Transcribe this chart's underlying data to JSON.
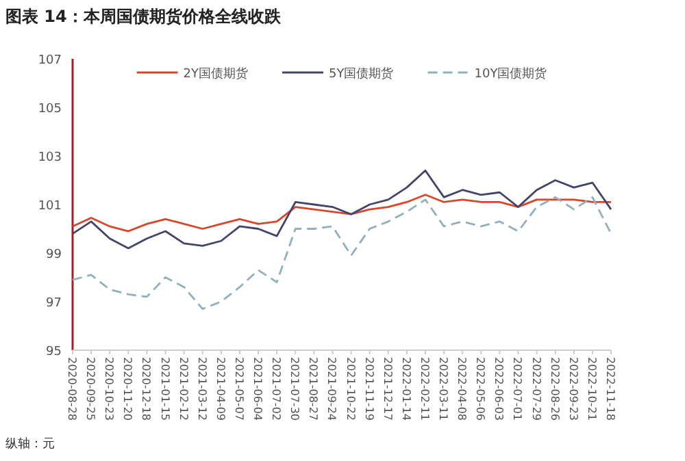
{
  "chart_data": {
    "type": "line",
    "title": "图表 14：本周国债期货价格全线收跌",
    "categories": [
      "2020-08-28",
      "2020-09-25",
      "2020-10-23",
      "2020-11-20",
      "2020-12-18",
      "2021-01-15",
      "2021-02-12",
      "2021-03-12",
      "2021-04-09",
      "2021-05-07",
      "2021-06-04",
      "2021-07-02",
      "2021-07-30",
      "2021-08-27",
      "2021-09-24",
      "2021-10-22",
      "2021-11-19",
      "2021-12-17",
      "2022-01-14",
      "2022-02-11",
      "2022-03-11",
      "2022-04-08",
      "2022-05-06",
      "2022-06-03",
      "2022-07-01",
      "2022-07-29",
      "2022-08-26",
      "2022-09-23",
      "2022-10-21",
      "2022-11-18"
    ],
    "series": [
      {
        "name": "2Y国债期货",
        "color": "#d9452b",
        "line_style": "solid",
        "values": [
          100.1,
          100.45,
          100.1,
          99.9,
          100.2,
          100.4,
          100.2,
          100.0,
          100.2,
          100.4,
          100.2,
          100.3,
          100.9,
          100.8,
          100.7,
          100.6,
          100.8,
          100.9,
          101.1,
          101.4,
          101.1,
          101.2,
          101.1,
          101.1,
          100.9,
          101.2,
          101.2,
          101.2,
          101.1,
          101.1
        ]
      },
      {
        "name": "5Y国债期货",
        "color": "#44446a",
        "line_style": "solid",
        "values": [
          99.8,
          100.3,
          99.6,
          99.2,
          99.6,
          99.9,
          99.4,
          99.3,
          99.5,
          100.1,
          100.0,
          99.7,
          101.1,
          101.0,
          100.9,
          100.6,
          101.0,
          101.2,
          101.7,
          102.4,
          101.3,
          101.6,
          101.4,
          101.5,
          100.9,
          101.6,
          102.0,
          101.7,
          101.9,
          100.8
        ]
      },
      {
        "name": "10Y国债期货",
        "color": "#8fb0bc",
        "line_style": "dashed",
        "values": [
          97.9,
          98.1,
          97.5,
          97.3,
          97.2,
          98.0,
          97.6,
          96.7,
          97.0,
          97.6,
          98.3,
          97.8,
          100.0,
          100.0,
          100.1,
          98.9,
          100.0,
          100.3,
          100.7,
          101.2,
          100.1,
          100.3,
          100.1,
          100.3,
          99.9,
          100.9,
          101.3,
          100.8,
          101.3,
          99.8
        ]
      }
    ],
    "ylim": [
      95,
      107
    ],
    "yticks": [
      95,
      97,
      99,
      101,
      103,
      105,
      107
    ],
    "legend": "top",
    "annotations": [
      "纵轴：元"
    ]
  }
}
